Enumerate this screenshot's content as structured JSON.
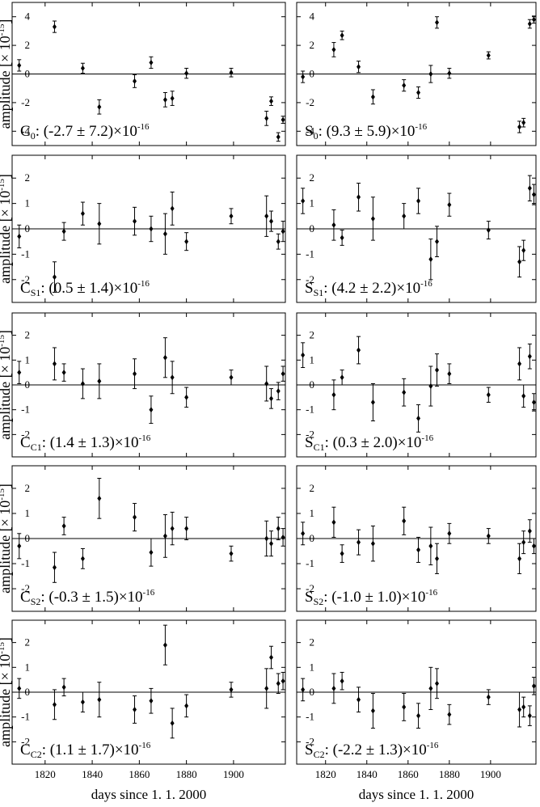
{
  "axes_text": {
    "ylabel": "amplitude [× 10",
    "ylabel_exp": "-15",
    "ylabel_close": "]",
    "xlabel": "days since 1. 1. 2000",
    "x_ticks": [
      "1820",
      "1840",
      "1860",
      "1880",
      "1900"
    ],
    "x_tick_values": [
      1820,
      1840,
      1860,
      1880,
      1900
    ]
  },
  "chart_data": [
    {
      "type": "scatter",
      "panel": "C0",
      "label": {
        "main": "C",
        "sub": "0",
        "text": ": (-2.7 ± 7.2)×10",
        "exp": "-16"
      },
      "ylim": [
        -5,
        5
      ],
      "yticks": [
        -4,
        -2,
        0,
        2,
        4
      ],
      "xlim": [
        1806,
        1922
      ],
      "x": [
        1809,
        1824,
        1836,
        1843,
        1858,
        1865,
        1871,
        1874,
        1880,
        1899,
        1914,
        1916,
        1919,
        1921
      ],
      "y": [
        0.6,
        3.3,
        0.4,
        -2.3,
        -0.5,
        0.8,
        -1.8,
        -1.7,
        0.05,
        0.1,
        -3.1,
        -1.9,
        -4.4,
        -3.2
      ],
      "err": [
        0.4,
        0.4,
        0.35,
        0.5,
        0.45,
        0.4,
        0.5,
        0.5,
        0.35,
        0.3,
        0.5,
        0.3,
        0.3,
        0.25
      ]
    },
    {
      "type": "scatter",
      "panel": "S0",
      "label": {
        "main": "S",
        "sub": "0",
        "text": ": (9.3 ± 5.9)×10",
        "exp": "-16"
      },
      "ylim": [
        -5,
        5
      ],
      "yticks": [
        -4,
        -2,
        0,
        2,
        4
      ],
      "xlim": [
        1806,
        1922
      ],
      "x": [
        1809,
        1824,
        1828,
        1836,
        1843,
        1858,
        1865,
        1871,
        1874,
        1880,
        1899,
        1914,
        1916,
        1919,
        1921
      ],
      "y": [
        -0.2,
        1.7,
        2.7,
        0.5,
        -1.6,
        -0.8,
        -1.3,
        0.0,
        3.6,
        0.05,
        1.3,
        -3.7,
        -3.4,
        3.5,
        3.8
      ],
      "err": [
        0.4,
        0.5,
        0.3,
        0.4,
        0.5,
        0.4,
        0.4,
        0.6,
        0.4,
        0.35,
        0.25,
        0.4,
        0.3,
        0.3,
        0.25
      ]
    },
    {
      "type": "scatter",
      "panel": "CS1",
      "label": {
        "main": "C",
        "sub": "S1",
        "text": ": (0.5 ± 1.4)×10",
        "exp": "-16"
      },
      "ylim": [
        -2.9,
        2.9
      ],
      "yticks": [
        -2,
        -1,
        0,
        1,
        2
      ],
      "xlim": [
        1806,
        1922
      ],
      "x": [
        1809,
        1824,
        1828,
        1836,
        1843,
        1858,
        1865,
        1871,
        1874,
        1880,
        1899,
        1914,
        1916,
        1919,
        1921
      ],
      "y": [
        -0.3,
        -1.9,
        -0.1,
        0.6,
        0.2,
        0.3,
        0.0,
        -0.2,
        0.8,
        -0.5,
        0.5,
        0.5,
        0.3,
        -0.5,
        -0.1
      ],
      "err": [
        0.45,
        0.6,
        0.35,
        0.45,
        0.8,
        0.55,
        0.5,
        0.8,
        0.65,
        0.35,
        0.3,
        0.8,
        0.4,
        0.3,
        0.4
      ]
    },
    {
      "type": "scatter",
      "panel": "SS1",
      "label": {
        "main": "S",
        "sub": "S1",
        "text": ": (4.2 ± 2.2)×10",
        "exp": "-16"
      },
      "ylim": [
        -2.9,
        2.9
      ],
      "yticks": [
        -2,
        -1,
        0,
        1,
        2
      ],
      "xlim": [
        1806,
        1922
      ],
      "x": [
        1809,
        1824,
        1828,
        1836,
        1843,
        1858,
        1865,
        1871,
        1874,
        1880,
        1899,
        1914,
        1916,
        1919,
        1921
      ],
      "y": [
        1.1,
        0.15,
        -0.35,
        1.25,
        0.4,
        0.5,
        1.1,
        -1.2,
        -0.5,
        0.95,
        -0.05,
        -1.3,
        -0.85,
        1.6,
        1.35
      ],
      "err": [
        0.5,
        0.6,
        0.3,
        0.55,
        0.85,
        0.5,
        0.5,
        0.8,
        0.6,
        0.45,
        0.35,
        0.6,
        0.4,
        0.5,
        0.4
      ]
    },
    {
      "type": "scatter",
      "panel": "CC1",
      "label": {
        "main": "C",
        "sub": "C1",
        "text": ": (1.4 ± 1.3)×10",
        "exp": "-16"
      },
      "ylim": [
        -2.9,
        2.9
      ],
      "yticks": [
        -2,
        -1,
        0,
        1,
        2
      ],
      "xlim": [
        1806,
        1922
      ],
      "x": [
        1809,
        1824,
        1828,
        1836,
        1843,
        1858,
        1865,
        1871,
        1874,
        1880,
        1899,
        1914,
        1916,
        1919,
        1921
      ],
      "y": [
        0.5,
        0.85,
        0.5,
        0.05,
        0.15,
        0.45,
        -1.0,
        1.1,
        0.3,
        -0.5,
        0.3,
        0.05,
        -0.55,
        -0.25,
        0.45
      ],
      "err": [
        0.45,
        0.65,
        0.35,
        0.6,
        0.7,
        0.6,
        0.55,
        0.8,
        0.65,
        0.4,
        0.3,
        0.7,
        0.4,
        0.35,
        0.3
      ]
    },
    {
      "type": "scatter",
      "panel": "SC1",
      "label": {
        "main": "S",
        "sub": "C1",
        "text": ": (0.3 ± 2.0)×10",
        "exp": "-16"
      },
      "ylim": [
        -2.9,
        2.9
      ],
      "yticks": [
        -2,
        -1,
        0,
        1,
        2
      ],
      "xlim": [
        1806,
        1922
      ],
      "x": [
        1809,
        1824,
        1828,
        1836,
        1843,
        1858,
        1865,
        1871,
        1874,
        1880,
        1899,
        1914,
        1916,
        1919,
        1921
      ],
      "y": [
        1.2,
        -0.4,
        0.3,
        1.4,
        -0.7,
        -0.3,
        -1.35,
        -0.05,
        0.6,
        0.45,
        -0.4,
        0.85,
        -0.45,
        1.15,
        -0.7
      ],
      "err": [
        0.5,
        0.6,
        0.3,
        0.55,
        0.75,
        0.55,
        0.55,
        0.8,
        0.65,
        0.4,
        0.3,
        0.65,
        0.45,
        0.5,
        0.35
      ]
    },
    {
      "type": "scatter",
      "panel": "CS2",
      "label": {
        "main": "C",
        "sub": "S2",
        "text": ": (-0.3 ± 1.5)×10",
        "exp": "-16"
      },
      "ylim": [
        -2.9,
        2.9
      ],
      "yticks": [
        -2,
        -1,
        0,
        1,
        2
      ],
      "xlim": [
        1806,
        1922
      ],
      "x": [
        1809,
        1824,
        1828,
        1836,
        1843,
        1858,
        1865,
        1871,
        1874,
        1880,
        1899,
        1914,
        1916,
        1919,
        1921
      ],
      "y": [
        -0.3,
        -1.15,
        0.5,
        -0.8,
        1.6,
        0.85,
        -0.55,
        0.1,
        0.4,
        0.4,
        -0.6,
        0.0,
        -0.2,
        0.4,
        0.05
      ],
      "err": [
        0.5,
        0.6,
        0.35,
        0.4,
        0.8,
        0.55,
        0.55,
        0.85,
        0.65,
        0.45,
        0.3,
        0.7,
        0.5,
        0.45,
        0.35
      ]
    },
    {
      "type": "scatter",
      "panel": "SS2",
      "label": {
        "main": "S",
        "sub": "S2",
        "text": ": (-1.0 ± 1.0)×10",
        "exp": "-16"
      },
      "ylim": [
        -2.9,
        2.9
      ],
      "yticks": [
        -2,
        -1,
        0,
        1,
        2
      ],
      "xlim": [
        1806,
        1922
      ],
      "x": [
        1809,
        1824,
        1828,
        1836,
        1843,
        1858,
        1865,
        1871,
        1874,
        1880,
        1899,
        1914,
        1916,
        1919,
        1921
      ],
      "y": [
        0.2,
        0.65,
        -0.6,
        -0.15,
        -0.2,
        0.7,
        -0.45,
        -0.3,
        -0.8,
        0.2,
        0.1,
        -0.8,
        -0.15,
        0.3,
        -0.3
      ],
      "err": [
        0.45,
        0.6,
        0.35,
        0.5,
        0.7,
        0.55,
        0.5,
        0.75,
        0.6,
        0.4,
        0.3,
        0.6,
        0.45,
        0.45,
        0.3
      ]
    },
    {
      "type": "scatter",
      "panel": "CC2",
      "label": {
        "main": "C",
        "sub": "C2",
        "text": ": (1.1 ± 1.7)×10",
        "exp": "-16"
      },
      "ylim": [
        -2.9,
        2.9
      ],
      "yticks": [
        -2,
        -1,
        0,
        1,
        2
      ],
      "xlim": [
        1806,
        1922
      ],
      "x": [
        1809,
        1824,
        1828,
        1836,
        1843,
        1858,
        1865,
        1871,
        1874,
        1880,
        1899,
        1914,
        1916,
        1919,
        1921
      ],
      "y": [
        0.15,
        -0.5,
        0.2,
        -0.4,
        -0.3,
        -0.7,
        -0.35,
        1.9,
        -1.25,
        -0.55,
        0.1,
        0.15,
        1.4,
        0.35,
        0.45
      ],
      "err": [
        0.4,
        0.6,
        0.35,
        0.4,
        0.7,
        0.55,
        0.5,
        0.8,
        0.6,
        0.45,
        0.3,
        0.8,
        0.45,
        0.4,
        0.35
      ]
    },
    {
      "type": "scatter",
      "panel": "SC2",
      "label": {
        "main": "S",
        "sub": "C2",
        "text": ": (-2.2 ± 1.3)×10",
        "exp": "-16"
      },
      "ylim": [
        -2.9,
        2.9
      ],
      "yticks": [
        -2,
        -1,
        0,
        1,
        2
      ],
      "xlim": [
        1806,
        1922
      ],
      "x": [
        1809,
        1824,
        1828,
        1836,
        1843,
        1858,
        1865,
        1871,
        1874,
        1880,
        1899,
        1914,
        1916,
        1919,
        1921
      ],
      "y": [
        0.1,
        0.15,
        0.45,
        -0.3,
        -0.75,
        -0.6,
        -0.95,
        0.15,
        0.35,
        -0.9,
        -0.2,
        -0.7,
        -0.6,
        -0.95,
        0.25
      ],
      "err": [
        0.45,
        0.6,
        0.35,
        0.5,
        0.7,
        0.55,
        0.5,
        0.85,
        0.6,
        0.4,
        0.3,
        0.7,
        0.4,
        0.4,
        0.35
      ]
    }
  ]
}
